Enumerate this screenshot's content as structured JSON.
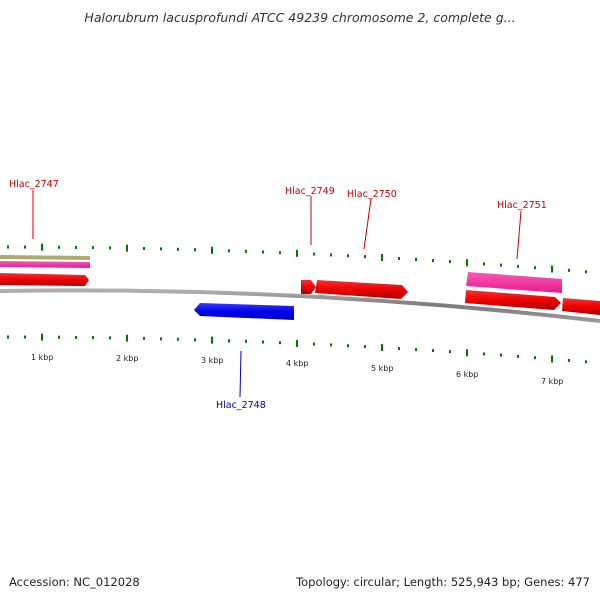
{
  "title": "Halorubrum lacusprofundi ATCC 49239 chromosome 2, complete g...",
  "footer": {
    "accession": "Accession: NC_012028",
    "summary": "Topology: circular; Length: 525,943 bp; Genes: 477"
  },
  "scale": {
    "labels": [
      "1 kbp",
      "2 kbp",
      "3 kbp",
      "4 kbp",
      "5 kbp",
      "6 kbp",
      "7 kbp"
    ]
  },
  "genes": [
    {
      "id": "Hlac_2747",
      "strand": "forward",
      "color": "#cc0000"
    },
    {
      "id": "Hlac_2748",
      "strand": "reverse",
      "color": "#0000bb"
    },
    {
      "id": "Hlac_2749",
      "strand": "forward",
      "color": "#cc0000"
    },
    {
      "id": "Hlac_2750",
      "strand": "forward",
      "color": "#cc0000"
    },
    {
      "id": "Hlac_2751",
      "strand": "forward",
      "color": "#cc0000"
    }
  ],
  "colors": {
    "cds": "#ff0000",
    "reverse_cds": "#0000ff",
    "rna": "#ff33aa",
    "gene": "#b3a872",
    "tick": "#007700",
    "backbone": "#8a8a8a"
  }
}
